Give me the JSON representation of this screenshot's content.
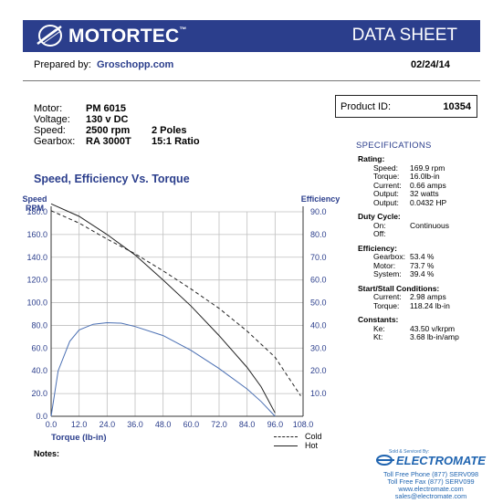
{
  "header": {
    "brand": "MOTORTEC",
    "tm": "™",
    "title": "DATA SHEET",
    "brand_color": "#2b3e8c"
  },
  "prepared": {
    "label": "Prepared by:",
    "value": "Groschopp.com"
  },
  "date": "02/24/14",
  "motor": [
    {
      "label": "Motor:",
      "value": "PM  6015",
      "extra": ""
    },
    {
      "label": "Voltage:",
      "value": "130 v DC",
      "extra": ""
    },
    {
      "label": "Speed:",
      "value": "2500 rpm",
      "extra": "2 Poles"
    },
    {
      "label": "Gearbox:",
      "value": "RA 3000T",
      "extra": "15:1 Ratio"
    }
  ],
  "product": {
    "label": "Product ID:",
    "value": "10354"
  },
  "specifications": {
    "title": "SPECIFICATIONS",
    "sections": [
      {
        "heading": "Rating:",
        "rows": [
          {
            "k": "Speed:",
            "v": "169.9 rpm"
          },
          {
            "k": "Torque:",
            "v": "16.0lb-in"
          },
          {
            "k": "Current:",
            "v": "0.66 amps"
          },
          {
            "k": "Output:",
            "v": "32 watts"
          },
          {
            "k": "Output:",
            "v": "0.0432 HP"
          }
        ]
      },
      {
        "heading": "Duty Cycle:",
        "rows": [
          {
            "k": "On:",
            "v": "Continuous"
          },
          {
            "k": "Off:",
            "v": ""
          }
        ]
      },
      {
        "heading": "Efficiency:",
        "rows": [
          {
            "k": "Gearbox:",
            "v": "53.4 %"
          },
          {
            "k": "Motor:",
            "v": "73.7 %"
          },
          {
            "k": "System:",
            "v": "39.4 %"
          }
        ]
      },
      {
        "heading": "Start/Stall Conditions:",
        "rows": [
          {
            "k": "Current:",
            "v": "2.98 amps"
          },
          {
            "k": "Torque:",
            "v": "118.24 lb-in"
          }
        ]
      },
      {
        "heading": "Constants:",
        "rows": [
          {
            "k": "Ke:",
            "v": "43.50 v/krpm"
          },
          {
            "k": "Kt:",
            "v": "3.68 lb-in/amp"
          }
        ]
      }
    ]
  },
  "chart_title": "Speed, Efficiency Vs. Torque",
  "chart_data": {
    "type": "line",
    "title": "Speed, Efficiency Vs. Torque",
    "xlabel": "Torque  (lb-in)",
    "ylabel_left": [
      "Speed",
      "RPM"
    ],
    "ylabel_right": "Efficiency",
    "xlim": [
      0,
      108
    ],
    "ylim_left": [
      0,
      180
    ],
    "ylim_right": [
      0,
      90
    ],
    "x_ticks": [
      "0.0",
      "12.0",
      "24.0",
      "36.0",
      "48.0",
      "60.0",
      "72.0",
      "84.0",
      "96.0",
      "108.0"
    ],
    "y_left_ticks": [
      "0.0",
      "20.0",
      "40.0",
      "60.0",
      "80.0",
      "100.0",
      "120.0",
      "140.0",
      "160.0",
      "180.0"
    ],
    "y_right_ticks": [
      "10.0",
      "20.0",
      "30.0",
      "40.0",
      "50.0",
      "60.0",
      "70.0",
      "80.0",
      "90.0"
    ],
    "grid": true,
    "colors": {
      "speed": "#222222",
      "efficiency": "#4a6fb3",
      "axis_text": "#2b3e8c",
      "grid": "#bfbfbf"
    },
    "series": [
      {
        "name": "Cold",
        "axis": "left",
        "style": "dashed",
        "x": [
          0,
          12,
          24,
          36,
          48,
          60,
          72,
          84,
          96,
          107
        ],
        "y": [
          181,
          170,
          156,
          143,
          128,
          112,
          95,
          75,
          52,
          18
        ]
      },
      {
        "name": "Hot",
        "axis": "left",
        "style": "solid",
        "x": [
          0,
          12,
          24,
          36,
          48,
          60,
          72,
          84,
          90,
          96
        ],
        "y": [
          187,
          176,
          160,
          142,
          120,
          97,
          71,
          43,
          26,
          3
        ]
      },
      {
        "name": "",
        "axis": "right",
        "style": "solid",
        "x": [
          0,
          3,
          8,
          12,
          18,
          24,
          30,
          36,
          48,
          60,
          72,
          84,
          90,
          96
        ],
        "y": [
          0,
          20,
          33,
          38,
          40.5,
          41.2,
          41,
          39.5,
          35.5,
          29,
          21,
          12,
          6.5,
          0
        ]
      }
    ]
  },
  "legend": [
    {
      "label": "Cold",
      "style": "dashed"
    },
    {
      "label": "Hot",
      "style": "solid"
    }
  ],
  "notes_label": "Notes:",
  "electromate": {
    "sold": "Sold & Serviced By:",
    "name": "ELECTROMATE",
    "lines": [
      "Toll Free Phone  (877) SERV098",
      "Toll Free Fax  (877) SERV099",
      "www.electromate.com",
      "sales@electromate.com"
    ]
  }
}
